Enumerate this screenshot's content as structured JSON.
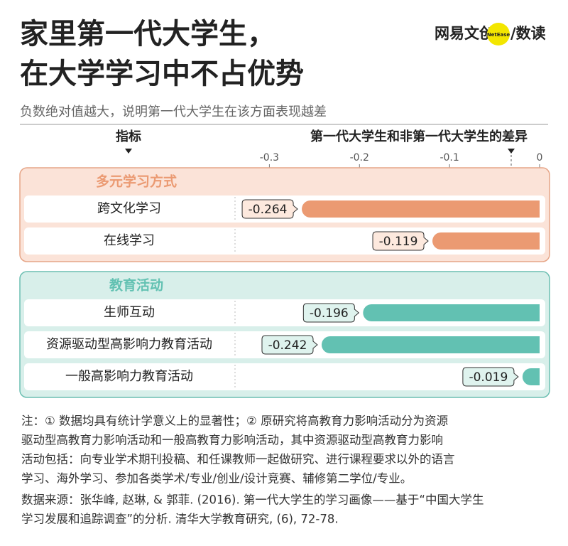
{
  "chart_data": {
    "type": "bar",
    "title": [
      "家里第一代大学生，",
      "在大学学习中不占优势"
    ],
    "subtitle": "负数绝对值越大，说明第一代大学生在该方面表现越差",
    "logo": [
      "网易文创",
      "NetEase",
      "/数读"
    ],
    "category_header": "指标",
    "x_label": "第一代大学生和非第一代大学生的差异",
    "xlim": [
      -0.335,
      0
    ],
    "xticks": [
      -0.3,
      -0.2,
      -0.1,
      0
    ],
    "groups": [
      {
        "name": "多元学习方式",
        "color": "#eb9a72",
        "panel": "#fbe3d8",
        "border": "#e6a587",
        "label_fill": "#fde9de",
        "categories": [
          "跨文化学习",
          "在线学习"
        ],
        "values": [
          -0.264,
          -0.119
        ]
      },
      {
        "name": "教育活动",
        "color": "#62c1b2",
        "panel": "#d8efea",
        "border": "#6cbfb2",
        "label_fill": "#dff3ee",
        "categories": [
          "生师互动",
          "资源驱动型高影响力教育活动",
          "一般高影响力教育活动"
        ],
        "values": [
          -0.196,
          -0.242,
          -0.019
        ]
      }
    ],
    "notes": [
      "注：① 数据均具有统计学意义上的显著性；② 原研究将高教育力影响活动分为资源",
      "驱动型高教育力影响活动和一般高教育力影响活动，其中资源驱动型高教育力影响",
      "活动包括：向专业学术期刊投稿、和任课教师一起做研究、进行课程要求以外的语言",
      "学习、海外学习、参加各类学术/专业/创业/设计竞赛、辅修第二学位/专业。"
    ],
    "source": [
      "数据来源：张华峰, 赵琳, & 郭菲. (2016). 第一代大学生的学习画像——基于“中国大学生",
      "学习发展和追踪调查”的分析. 清华大学教育研究, (6), 72-78."
    ]
  }
}
